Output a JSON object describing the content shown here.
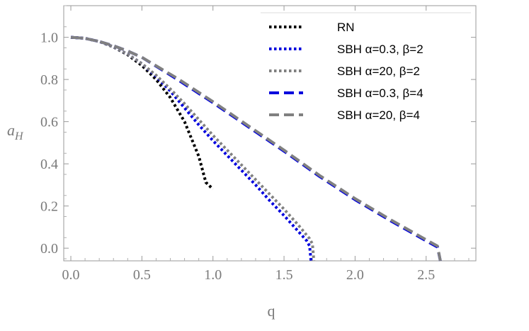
{
  "chart_data": {
    "type": "line",
    "title": "",
    "xlabel": "q",
    "ylabel_main": "a",
    "ylabel_sub": "H",
    "xlim": [
      -0.05,
      2.85
    ],
    "ylim": [
      -0.06,
      1.15
    ],
    "xticks": [
      0.0,
      0.5,
      1.0,
      1.5,
      2.0,
      2.5
    ],
    "xtick_labels": [
      "0.0",
      "0.5",
      "1.0",
      "1.5",
      "2.0",
      "2.5"
    ],
    "yticks": [
      0.0,
      0.2,
      0.4,
      0.6,
      0.8,
      1.0
    ],
    "ytick_labels": [
      "0.0",
      "0.2",
      "0.4",
      "0.6",
      "0.8",
      "1.0"
    ],
    "grid": false,
    "legend_position": "top-right",
    "series": [
      {
        "name": "RN",
        "color": "#000000",
        "style": "dotted",
        "x": [
          0.0,
          0.1,
          0.2,
          0.3,
          0.4,
          0.5,
          0.6,
          0.7,
          0.8,
          0.9,
          0.95,
          1.0
        ],
        "y": [
          1.0,
          0.995,
          0.98,
          0.954,
          0.917,
          0.866,
          0.8,
          0.714,
          0.6,
          0.436,
          0.312,
          0.28
        ]
      },
      {
        "name": "SBH α=0.3, β=2",
        "color": "#0000dd",
        "style": "dotted",
        "x": [
          0.0,
          0.1,
          0.2,
          0.3,
          0.4,
          0.5,
          0.6,
          0.7,
          0.8,
          0.9,
          1.0,
          1.1,
          1.2,
          1.3,
          1.4,
          1.5,
          1.6,
          1.66,
          1.68,
          1.69
        ],
        "y": [
          1.0,
          0.995,
          0.98,
          0.955,
          0.92,
          0.875,
          0.815,
          0.745,
          0.665,
          0.585,
          0.51,
          0.44,
          0.37,
          0.3,
          0.225,
          0.155,
          0.08,
          0.035,
          0.01,
          -0.06
        ]
      },
      {
        "name": "SBH α=20, β=2",
        "color": "#808080",
        "style": "dotted",
        "x": [
          0.0,
          0.1,
          0.2,
          0.3,
          0.4,
          0.5,
          0.6,
          0.7,
          0.8,
          0.9,
          1.0,
          1.1,
          1.2,
          1.3,
          1.4,
          1.5,
          1.6,
          1.68,
          1.7,
          1.71
        ],
        "y": [
          1.0,
          0.995,
          0.98,
          0.955,
          0.92,
          0.875,
          0.82,
          0.755,
          0.685,
          0.61,
          0.535,
          0.465,
          0.395,
          0.325,
          0.255,
          0.185,
          0.11,
          0.045,
          0.02,
          -0.06
        ]
      },
      {
        "name": "SBH α=0.3, β=4",
        "color": "#0000dd",
        "style": "dashed",
        "x": [
          0.0,
          0.1,
          0.2,
          0.3,
          0.4,
          0.5,
          0.75,
          1.0,
          1.25,
          1.5,
          1.75,
          2.0,
          2.25,
          2.5,
          2.58,
          2.6
        ],
        "y": [
          1.0,
          0.995,
          0.98,
          0.96,
          0.935,
          0.905,
          0.8,
          0.69,
          0.575,
          0.46,
          0.34,
          0.23,
          0.13,
          0.035,
          0.005,
          -0.06
        ]
      },
      {
        "name": "SBH α=20, β=4",
        "color": "#808080",
        "style": "dashed",
        "x": [
          0.0,
          0.1,
          0.2,
          0.3,
          0.4,
          0.5,
          0.75,
          1.0,
          1.25,
          1.5,
          1.75,
          2.0,
          2.25,
          2.5,
          2.58,
          2.6
        ],
        "y": [
          1.0,
          0.995,
          0.98,
          0.96,
          0.935,
          0.905,
          0.805,
          0.695,
          0.58,
          0.465,
          0.345,
          0.235,
          0.135,
          0.04,
          0.01,
          -0.06
        ]
      }
    ]
  }
}
